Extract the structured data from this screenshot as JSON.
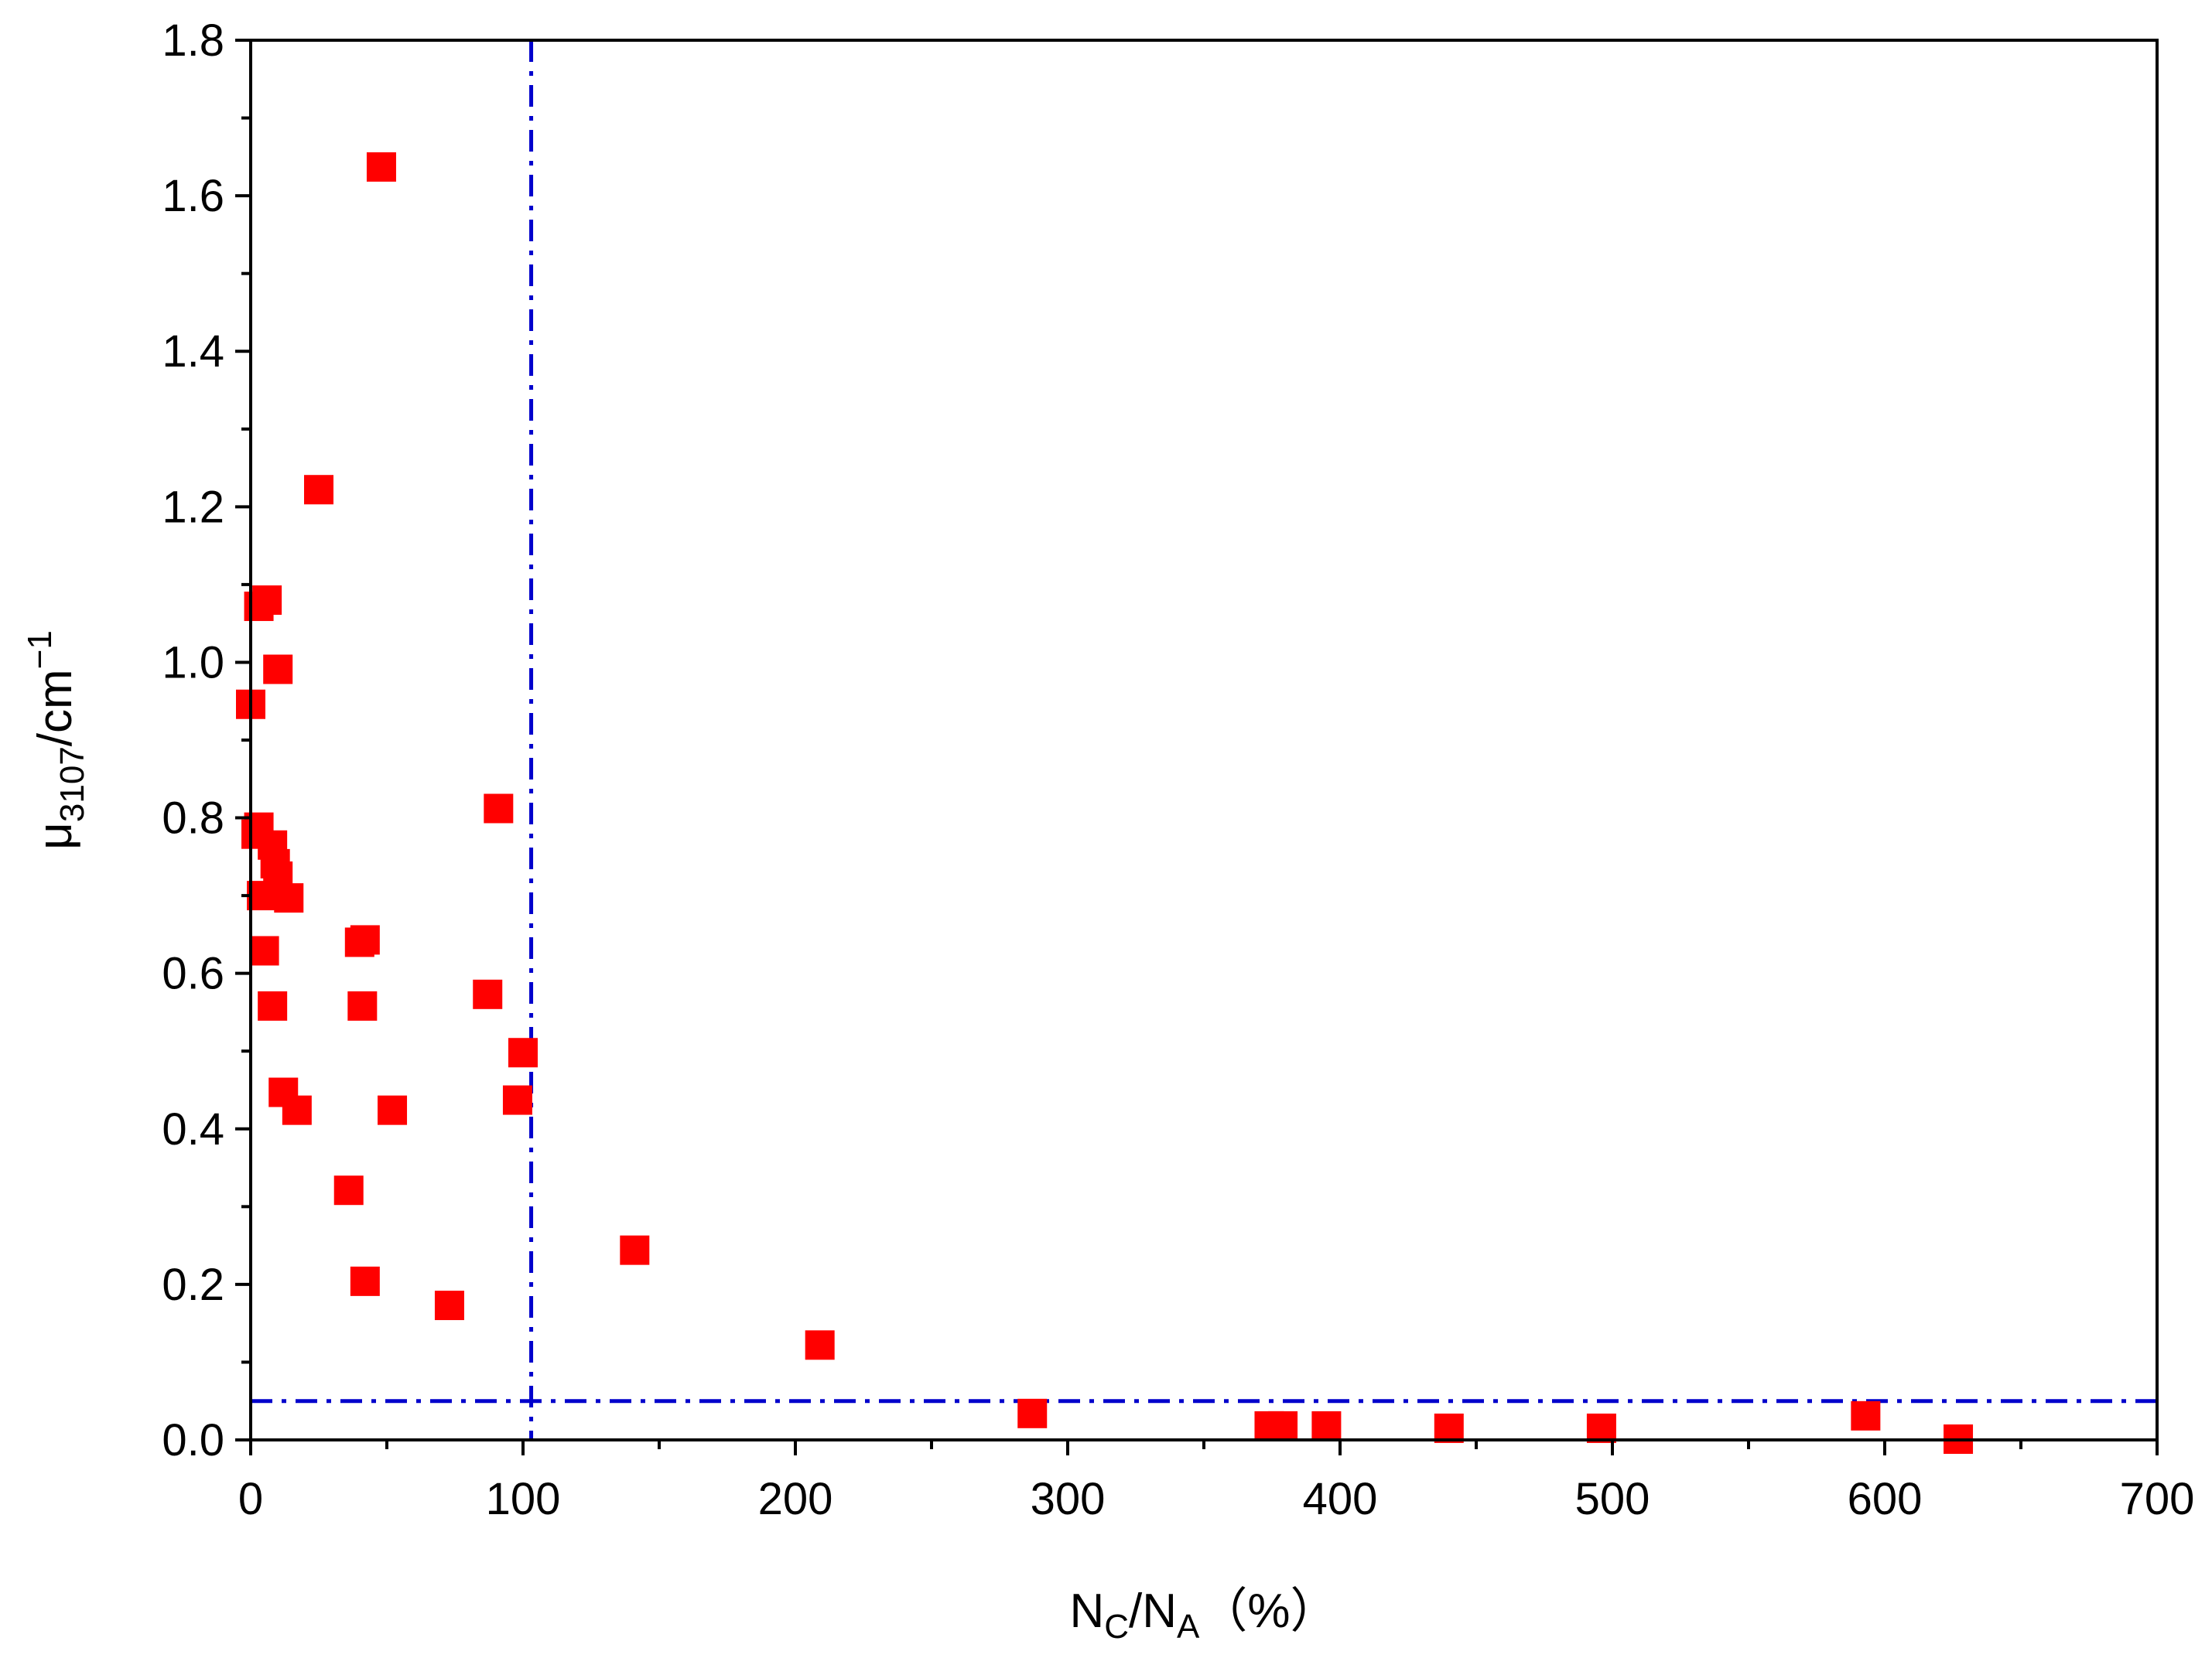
{
  "chart_data": {
    "type": "scatter",
    "title": "",
    "xlabel": {
      "main": "N",
      "sub1": "C",
      "sep": "/N",
      "sub2": "A",
      "unit": "（%）"
    },
    "ylabel": {
      "main": "μ",
      "sub": "3107",
      "unit": "/cm",
      "sup": "−1"
    },
    "xlim": [
      0,
      700
    ],
    "ylim": [
      0,
      1.8
    ],
    "xticks": [
      "0",
      "100",
      "200",
      "300",
      "400",
      "500",
      "600",
      "700"
    ],
    "yticks": [
      "0.0",
      "0.2",
      "0.4",
      "0.6",
      "0.8",
      "1.0",
      "1.2",
      "1.4",
      "1.6",
      "1.8"
    ],
    "grid": false,
    "legend": "none",
    "marker": "square",
    "marker_color": "#ff0000",
    "reference_lines": [
      {
        "orientation": "vertical",
        "x": 103,
        "style": "dash-dot",
        "color": "#0000cc"
      },
      {
        "orientation": "horizontal",
        "y": 0.05,
        "style": "dash-dot",
        "color": "#0000cc"
      }
    ],
    "series": [
      {
        "points": [
          {
            "x": 48,
            "y": 1.637
          },
          {
            "x": 25,
            "y": 1.222
          },
          {
            "x": 3,
            "y": 1.072
          },
          {
            "x": 6,
            "y": 1.08
          },
          {
            "x": 10,
            "y": 0.991
          },
          {
            "x": 0,
            "y": 0.946
          },
          {
            "x": 3,
            "y": 0.788
          },
          {
            "x": 2,
            "y": 0.779
          },
          {
            "x": 8,
            "y": 0.765
          },
          {
            "x": 9,
            "y": 0.741
          },
          {
            "x": 10,
            "y": 0.725
          },
          {
            "x": 4,
            "y": 0.7
          },
          {
            "x": 14,
            "y": 0.697
          },
          {
            "x": 5,
            "y": 0.629
          },
          {
            "x": 8,
            "y": 0.558
          },
          {
            "x": 40,
            "y": 0.64
          },
          {
            "x": 42,
            "y": 0.643
          },
          {
            "x": 41,
            "y": 0.558
          },
          {
            "x": 91,
            "y": 0.812
          },
          {
            "x": 87,
            "y": 0.573
          },
          {
            "x": 100,
            "y": 0.498
          },
          {
            "x": 98,
            "y": 0.437
          },
          {
            "x": 12,
            "y": 0.447
          },
          {
            "x": 17,
            "y": 0.424
          },
          {
            "x": 52,
            "y": 0.424
          },
          {
            "x": 36,
            "y": 0.321
          },
          {
            "x": 42,
            "y": 0.204
          },
          {
            "x": 73,
            "y": 0.173
          },
          {
            "x": 141,
            "y": 0.244
          },
          {
            "x": 209,
            "y": 0.122
          },
          {
            "x": 287,
            "y": 0.034
          },
          {
            "x": 374,
            "y": 0.018
          },
          {
            "x": 379,
            "y": 0.018
          },
          {
            "x": 395,
            "y": 0.018
          },
          {
            "x": 440,
            "y": 0.015
          },
          {
            "x": 496,
            "y": 0.015
          },
          {
            "x": 593,
            "y": 0.031
          },
          {
            "x": 627,
            "y": 0.001
          }
        ]
      }
    ]
  }
}
